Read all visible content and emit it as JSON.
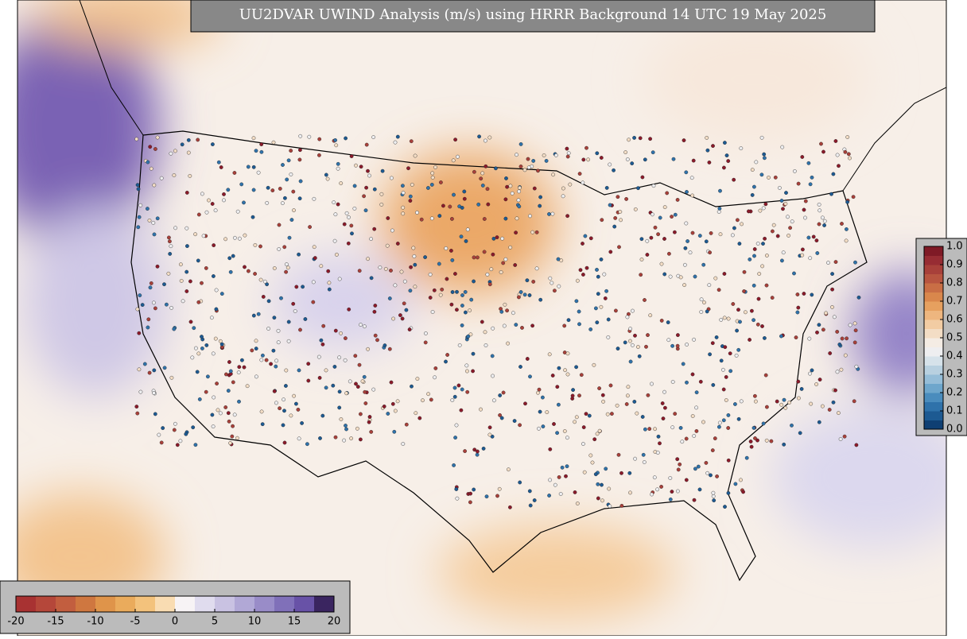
{
  "title": "UU2DVAR UWIND Analysis (m/s) using HRRR Background 14 UTC 19 May 2025",
  "wind_colorbar": {
    "lim": [
      -20,
      20
    ],
    "ticks": [
      -20,
      -15,
      -10,
      -5,
      0,
      5,
      10,
      15,
      20
    ],
    "colors": [
      "#a83232",
      "#b5473a",
      "#c25e3f",
      "#cf7740",
      "#df944a",
      "#eaab5c",
      "#f3c27c",
      "#f9dcb2",
      "#f7f3f5",
      "#e0dcee",
      "#c9c2e2",
      "#b1a8d6",
      "#998cc8",
      "#8070b9",
      "#6852a7",
      "#3a2560"
    ]
  },
  "observation_colorbar": {
    "lim": [
      0,
      1
    ],
    "ticks": [
      {
        "value": 0,
        "label": "0.0"
      },
      {
        "value": 0.1,
        "label": "0.1"
      },
      {
        "value": 0.2,
        "label": "0.2"
      },
      {
        "value": 0.3,
        "label": "0.3"
      },
      {
        "value": 0.4,
        "label": "0.4"
      },
      {
        "value": 0.5,
        "label": "0.5"
      },
      {
        "value": 0.6,
        "label": "0.6"
      },
      {
        "value": 0.7,
        "label": "0.7"
      },
      {
        "value": 0.8,
        "label": "0.8"
      },
      {
        "value": 0.9,
        "label": "0.9"
      },
      {
        "value": 1,
        "label": "1.0"
      }
    ],
    "colors": [
      "#0f3f73",
      "#1d5a92",
      "#2f72aa",
      "#4a8cbd",
      "#6ea6cc",
      "#95bdd8",
      "#b8d0e0",
      "#d6e2ea",
      "#eeeef0",
      "#f4ece4",
      "#f3ddc5",
      "#f2cca3",
      "#eeb67f",
      "#e6a05f",
      "#d9874c",
      "#c96e45",
      "#b85540",
      "#a8403a",
      "#972c33",
      "#7f1a26"
    ]
  }
}
